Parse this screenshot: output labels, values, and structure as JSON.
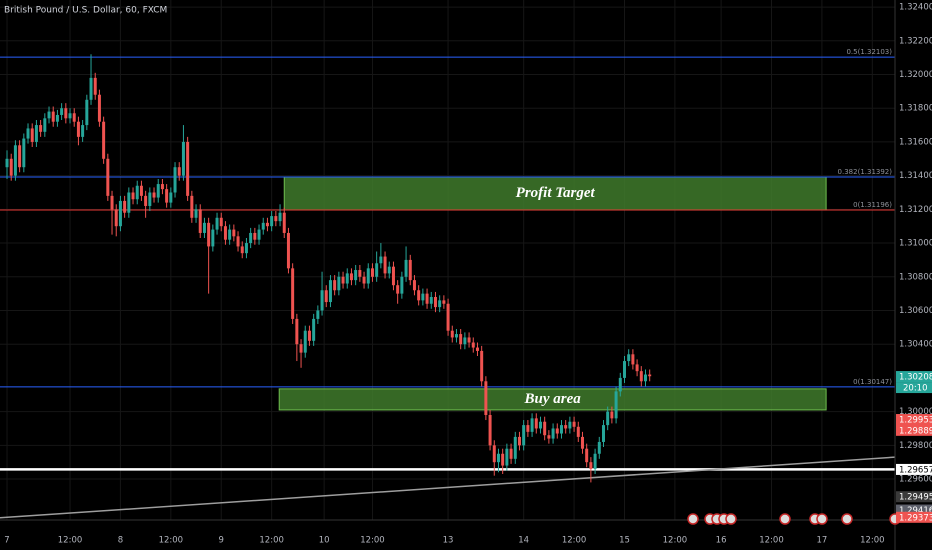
{
  "chart_data": {
    "type": "candlestick",
    "title": "British Pound / U.S. Dollar, 60, FXCM",
    "up_color": "#26a69a",
    "down_color": "#ef5350",
    "grid": true,
    "ylim": [
      1.29357,
      1.32442
    ],
    "xlim": [
      -1.67,
      211.4
    ],
    "yticks": [
      {
        "value": 1.324,
        "label": "1.32400"
      },
      {
        "value": 1.322,
        "label": "1.32200"
      },
      {
        "value": 1.32,
        "label": "1.32000"
      },
      {
        "value": 1.318,
        "label": "1.31800"
      },
      {
        "value": 1.316,
        "label": "1.31600"
      },
      {
        "value": 1.314,
        "label": "1.31400"
      },
      {
        "value": 1.312,
        "label": "1.31200"
      },
      {
        "value": 1.31,
        "label": "1.31000"
      },
      {
        "value": 1.308,
        "label": "1.30800"
      },
      {
        "value": 1.306,
        "label": "1.30600"
      },
      {
        "value": 1.304,
        "label": "1.30400"
      },
      {
        "value": 1.3,
        "label": "1.30000"
      },
      {
        "value": 1.298,
        "label": "1.29800"
      },
      {
        "value": 1.296,
        "label": "1.29600"
      }
    ],
    "xticks": [
      {
        "value": 0,
        "label": "7"
      },
      {
        "value": 15,
        "label": "12:00"
      },
      {
        "value": 27,
        "label": "8"
      },
      {
        "value": 39,
        "label": "12:00"
      },
      {
        "value": 51,
        "label": "9"
      },
      {
        "value": 63,
        "label": "12:00"
      },
      {
        "value": 75.5,
        "label": "10"
      },
      {
        "value": 87,
        "label": "12:00"
      },
      {
        "value": 105,
        "label": "13"
      },
      {
        "value": 123,
        "label": "14"
      },
      {
        "value": 135,
        "label": "12:00"
      },
      {
        "value": 147,
        "label": "15"
      },
      {
        "value": 159,
        "label": "12:00"
      },
      {
        "value": 170,
        "label": "16"
      },
      {
        "value": 182,
        "label": "12:00"
      },
      {
        "value": 194,
        "label": "17"
      },
      {
        "value": 206,
        "label": "12:00"
      }
    ],
    "ohlc": [
      [
        1.3145,
        1.3155,
        1.3138,
        1.315
      ],
      [
        1.315,
        1.3153,
        1.3137,
        1.314
      ],
      [
        1.314,
        1.3161,
        1.3137,
        1.3158
      ],
      [
        1.3158,
        1.3161,
        1.3142,
        1.3145
      ],
      [
        1.3145,
        1.3165,
        1.3142,
        1.3162
      ],
      [
        1.3162,
        1.3171,
        1.3159,
        1.3168
      ],
      [
        1.3168,
        1.3171,
        1.3157,
        1.316
      ],
      [
        1.316,
        1.3173,
        1.3157,
        1.317
      ],
      [
        1.317,
        1.3173,
        1.3163,
        1.3166
      ],
      [
        1.3166,
        1.3177,
        1.3163,
        1.3174
      ],
      [
        1.3174,
        1.3181,
        1.3171,
        1.3178
      ],
      [
        1.3178,
        1.3181,
        1.3169,
        1.3172
      ],
      [
        1.3172,
        1.3179,
        1.3169,
        1.3176
      ],
      [
        1.3176,
        1.3183,
        1.3173,
        1.318
      ],
      [
        1.318,
        1.3183,
        1.3171,
        1.3174
      ],
      [
        1.3174,
        1.318,
        1.3171,
        1.3177
      ],
      [
        1.3177,
        1.318,
        1.3169,
        1.3172
      ],
      [
        1.3172,
        1.3175,
        1.3158,
        1.3163
      ],
      [
        1.3163,
        1.3173,
        1.316,
        1.317
      ],
      [
        1.317,
        1.3188,
        1.3167,
        1.3185
      ],
      [
        1.3185,
        1.3212,
        1.3182,
        1.3198
      ],
      [
        1.3198,
        1.3201,
        1.3185,
        1.3188
      ],
      [
        1.3188,
        1.3191,
        1.3169,
        1.3172
      ],
      [
        1.3172,
        1.3175,
        1.3147,
        1.315
      ],
      [
        1.315,
        1.3153,
        1.3125,
        1.3128
      ],
      [
        1.3128,
        1.3131,
        1.3105,
        1.312
      ],
      [
        1.312,
        1.3123,
        1.3104,
        1.311
      ],
      [
        1.311,
        1.3128,
        1.3107,
        1.3125
      ],
      [
        1.3125,
        1.3128,
        1.3115,
        1.3118
      ],
      [
        1.3118,
        1.3133,
        1.3115,
        1.313
      ],
      [
        1.313,
        1.3133,
        1.3123,
        1.3126
      ],
      [
        1.3126,
        1.3137,
        1.3123,
        1.3134
      ],
      [
        1.3134,
        1.3137,
        1.3125,
        1.3128
      ],
      [
        1.3128,
        1.3131,
        1.3115,
        1.3122
      ],
      [
        1.3122,
        1.3133,
        1.3119,
        1.313
      ],
      [
        1.313,
        1.3133,
        1.3124,
        1.3127
      ],
      [
        1.3127,
        1.3138,
        1.3124,
        1.3135
      ],
      [
        1.3135,
        1.3138,
        1.3129,
        1.3132
      ],
      [
        1.3132,
        1.3135,
        1.3121,
        1.3124
      ],
      [
        1.3124,
        1.3133,
        1.3121,
        1.313
      ],
      [
        1.313,
        1.3148,
        1.3127,
        1.3145
      ],
      [
        1.3145,
        1.3148,
        1.3137,
        1.314
      ],
      [
        1.314,
        1.317,
        1.3137,
        1.316
      ],
      [
        1.316,
        1.3163,
        1.3125,
        1.3128
      ],
      [
        1.3128,
        1.3131,
        1.3112,
        1.3115
      ],
      [
        1.3115,
        1.3123,
        1.3112,
        1.312
      ],
      [
        1.312,
        1.3123,
        1.3103,
        1.3106
      ],
      [
        1.3106,
        1.3115,
        1.3103,
        1.3112
      ],
      [
        1.3112,
        1.3115,
        1.307,
        1.3098
      ],
      [
        1.3098,
        1.3111,
        1.3095,
        1.3108
      ],
      [
        1.3108,
        1.3118,
        1.3105,
        1.3115
      ],
      [
        1.3115,
        1.3118,
        1.3107,
        1.311
      ],
      [
        1.311,
        1.3113,
        1.3099,
        1.3102
      ],
      [
        1.3102,
        1.3111,
        1.3099,
        1.3108
      ],
      [
        1.3108,
        1.3111,
        1.3101,
        1.3104
      ],
      [
        1.3104,
        1.3107,
        1.3095,
        1.3098
      ],
      [
        1.3098,
        1.3101,
        1.3091,
        1.3094
      ],
      [
        1.3094,
        1.3103,
        1.3091,
        1.31
      ],
      [
        1.31,
        1.3109,
        1.3097,
        1.3106
      ],
      [
        1.3106,
        1.3109,
        1.3099,
        1.3102
      ],
      [
        1.3102,
        1.3111,
        1.3099,
        1.3108
      ],
      [
        1.3108,
        1.3115,
        1.3105,
        1.3112
      ],
      [
        1.3112,
        1.3115,
        1.3107,
        1.311
      ],
      [
        1.311,
        1.3119,
        1.3107,
        1.3116
      ],
      [
        1.3116,
        1.3119,
        1.311,
        1.3113
      ],
      [
        1.3113,
        1.3123,
        1.311,
        1.3118
      ],
      [
        1.3118,
        1.3121,
        1.3103,
        1.3106
      ],
      [
        1.3106,
        1.3109,
        1.3082,
        1.3085
      ],
      [
        1.3085,
        1.3088,
        1.3052,
        1.3055
      ],
      [
        1.3055,
        1.3058,
        1.303,
        1.304
      ],
      [
        1.304,
        1.3043,
        1.3026,
        1.3035
      ],
      [
        1.3035,
        1.3051,
        1.3032,
        1.3048
      ],
      [
        1.3048,
        1.3051,
        1.3039,
        1.3042
      ],
      [
        1.3042,
        1.3058,
        1.3039,
        1.3055
      ],
      [
        1.3055,
        1.3063,
        1.3052,
        1.306
      ],
      [
        1.306,
        1.3083,
        1.3057,
        1.3072
      ],
      [
        1.3072,
        1.3075,
        1.3062,
        1.3065
      ],
      [
        1.3065,
        1.3081,
        1.3062,
        1.3078
      ],
      [
        1.3078,
        1.3081,
        1.3069,
        1.3072
      ],
      [
        1.3072,
        1.3083,
        1.3069,
        1.308
      ],
      [
        1.308,
        1.3083,
        1.3073,
        1.3076
      ],
      [
        1.3076,
        1.3085,
        1.3073,
        1.3082
      ],
      [
        1.3082,
        1.3085,
        1.3075,
        1.3078
      ],
      [
        1.3078,
        1.3087,
        1.3075,
        1.3084
      ],
      [
        1.3084,
        1.3087,
        1.3077,
        1.308
      ],
      [
        1.308,
        1.3083,
        1.3073,
        1.3076
      ],
      [
        1.3076,
        1.3088,
        1.3073,
        1.3085
      ],
      [
        1.3085,
        1.3088,
        1.3077,
        1.308
      ],
      [
        1.308,
        1.3095,
        1.3077,
        1.3088
      ],
      [
        1.3088,
        1.31,
        1.3085,
        1.3092
      ],
      [
        1.3092,
        1.3095,
        1.3079,
        1.3082
      ],
      [
        1.3082,
        1.3089,
        1.3079,
        1.3086
      ],
      [
        1.3086,
        1.3089,
        1.3072,
        1.3075
      ],
      [
        1.3075,
        1.3078,
        1.3064,
        1.307
      ],
      [
        1.307,
        1.3083,
        1.3067,
        1.308
      ],
      [
        1.308,
        1.3098,
        1.3077,
        1.309
      ],
      [
        1.309,
        1.3093,
        1.3075,
        1.3078
      ],
      [
        1.3078,
        1.3081,
        1.3069,
        1.3072
      ],
      [
        1.3072,
        1.3075,
        1.3063,
        1.3066
      ],
      [
        1.3066,
        1.3073,
        1.3063,
        1.307
      ],
      [
        1.307,
        1.3073,
        1.3061,
        1.3064
      ],
      [
        1.3064,
        1.3071,
        1.3061,
        1.3068
      ],
      [
        1.3068,
        1.3071,
        1.3059,
        1.3062
      ],
      [
        1.3062,
        1.3069,
        1.3059,
        1.3066
      ],
      [
        1.3066,
        1.3069,
        1.3061,
        1.3064
      ],
      [
        1.3064,
        1.3067,
        1.3045,
        1.3048
      ],
      [
        1.3048,
        1.3051,
        1.3041,
        1.3044
      ],
      [
        1.3044,
        1.3049,
        1.3041,
        1.3046
      ],
      [
        1.3046,
        1.3049,
        1.3037,
        1.304
      ],
      [
        1.304,
        1.3047,
        1.3037,
        1.3044
      ],
      [
        1.3044,
        1.3047,
        1.3038,
        1.3041
      ],
      [
        1.3041,
        1.3044,
        1.3035,
        1.3038
      ],
      [
        1.3038,
        1.3041,
        1.3033,
        1.3036
      ],
      [
        1.3036,
        1.3039,
        1.3015,
        1.3018
      ],
      [
        1.3018,
        1.3021,
        1.2995,
        1.2998
      ],
      [
        1.2998,
        1.3001,
        1.2977,
        1.298
      ],
      [
        1.298,
        1.2983,
        1.2962,
        1.297
      ],
      [
        1.297,
        1.2978,
        1.2964,
        1.2975
      ],
      [
        1.2975,
        1.2978,
        1.2963,
        1.2968
      ],
      [
        1.2968,
        1.2981,
        1.2965,
        1.2978
      ],
      [
        1.2978,
        1.2981,
        1.2969,
        1.2972
      ],
      [
        1.2972,
        1.2988,
        1.2969,
        1.2985
      ],
      [
        1.2985,
        1.2988,
        1.2977,
        1.298
      ],
      [
        1.298,
        1.2995,
        1.2977,
        1.2992
      ],
      [
        1.2992,
        1.2995,
        1.2985,
        1.2988
      ],
      [
        1.2988,
        1.2999,
        1.2985,
        1.2996
      ],
      [
        1.2996,
        1.2999,
        1.2987,
        1.299
      ],
      [
        1.299,
        1.2997,
        1.2987,
        1.2994
      ],
      [
        1.2994,
        1.2997,
        1.2983,
        1.2986
      ],
      [
        1.2986,
        1.2989,
        1.2981,
        1.2984
      ],
      [
        1.2984,
        1.2993,
        1.2981,
        1.299
      ],
      [
        1.299,
        1.2993,
        1.2984,
        1.2987
      ],
      [
        1.2987,
        1.2995,
        1.2984,
        1.2992
      ],
      [
        1.2992,
        1.2995,
        1.2987,
        1.299
      ],
      [
        1.299,
        1.2997,
        1.2987,
        1.2994
      ],
      [
        1.2994,
        1.2997,
        1.2988,
        1.2991
      ],
      [
        1.2991,
        1.2994,
        1.2982,
        1.2985
      ],
      [
        1.2985,
        1.2988,
        1.2975,
        1.2978
      ],
      [
        1.2978,
        1.2981,
        1.2967,
        1.297
      ],
      [
        1.297,
        1.2973,
        1.2958,
        1.2966
      ],
      [
        1.2966,
        1.2978,
        1.2963,
        1.2975
      ],
      [
        1.2975,
        1.2985,
        1.2972,
        1.2982
      ],
      [
        1.2982,
        1.2995,
        1.2979,
        1.2992
      ],
      [
        1.2992,
        1.3003,
        1.2989,
        1.3
      ],
      [
        1.3,
        1.3003,
        1.2993,
        1.2996
      ],
      [
        1.2996,
        1.3015,
        1.2993,
        1.3012
      ],
      [
        1.3012,
        1.3023,
        1.3009,
        1.302
      ],
      [
        1.302,
        1.3033,
        1.3017,
        1.303
      ],
      [
        1.303,
        1.3037,
        1.3027,
        1.3034
      ],
      [
        1.3034,
        1.3037,
        1.3025,
        1.3028
      ],
      [
        1.3028,
        1.3031,
        1.3021,
        1.3024
      ],
      [
        1.3024,
        1.3027,
        1.3015,
        1.3018
      ],
      [
        1.3018,
        1.3025,
        1.3015,
        1.3022
      ],
      [
        1.3022,
        1.3025,
        1.3018,
        1.3021
      ]
    ],
    "levels": [
      {
        "value": 1.32103,
        "label": "0.5(1.32103)",
        "color": "#2962ff"
      },
      {
        "value": 1.31392,
        "label": "0.382(1.31392)",
        "color": "#2962ff"
      },
      {
        "value": 1.31196,
        "label": "0(1.31196)",
        "color": "#e53935"
      },
      {
        "value": 1.30147,
        "label": "0(1.30147)",
        "color": "#2962ff"
      }
    ],
    "zones": [
      {
        "label": "Profit Target",
        "x": [
          66,
          195
        ],
        "y": [
          1.31196,
          1.31392
        ],
        "color": "#3f7a2c"
      },
      {
        "label": "Buy area",
        "x": [
          64.8,
          195
        ],
        "y": [
          1.3001,
          1.30135
        ],
        "color": "#3f7a2c"
      }
    ],
    "horizontal_line": {
      "value": 1.29657,
      "color": "#ffffff"
    },
    "trendline": {
      "x": [
        -1.67,
        211.4
      ],
      "y": [
        1.2937,
        1.2973
      ],
      "color": "#9e9e9e"
    },
    "price_tags": [
      {
        "value": 1.30208,
        "color": "#26a69a"
      },
      {
        "value": 1.29953,
        "color": "#ef5350"
      },
      {
        "value": 1.29889,
        "color": "#ef5350"
      },
      {
        "value": 1.29657,
        "color": "#ffffff"
      },
      {
        "value": 1.29495,
        "color": "#3a3a3a"
      },
      {
        "value": 1.29416,
        "color": "#5d606b"
      },
      {
        "value": 1.29373,
        "color": "#ef5350"
      }
    ],
    "countdown": "20:10"
  }
}
